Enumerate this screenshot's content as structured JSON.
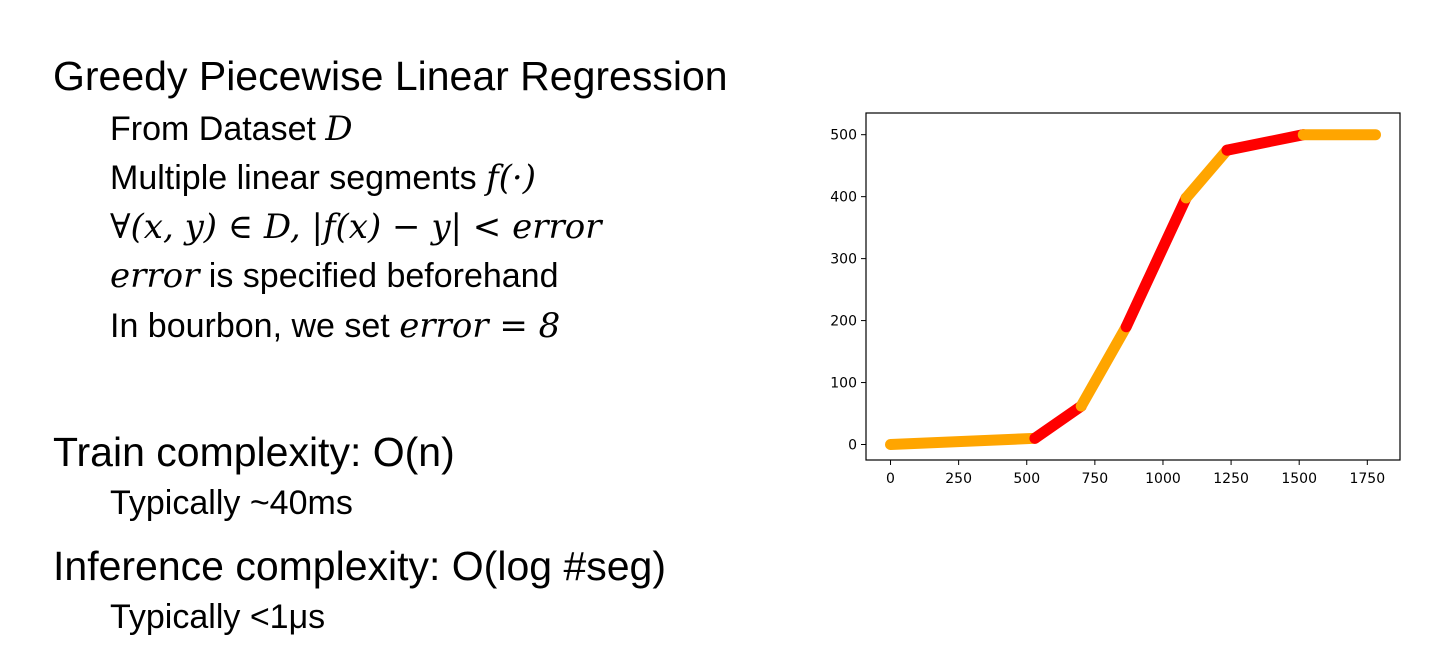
{
  "slide": {
    "title": "Greedy Piecewise Linear Regression",
    "bullets": [
      {
        "text": "From Dataset ",
        "math": "D"
      },
      {
        "text": "Multiple linear segments ",
        "math": "f(·)"
      },
      {
        "text": "",
        "math": "∀(x, y) ∈ D, |f(x) − y| < error"
      },
      {
        "math": "error",
        "text": " is specified beforehand"
      },
      {
        "text": "In bourbon, we set ",
        "math": "error = 8"
      }
    ],
    "train": {
      "heading": "Train complexity: O(n)",
      "detail": "Typically ~40ms"
    },
    "inference": {
      "heading": "Inference complexity: O(log #seg)",
      "detail": "Typically <1μs"
    }
  },
  "chart_data": {
    "type": "line",
    "title": "",
    "xlabel": "",
    "ylabel": "",
    "xlim": [
      -90,
      1870
    ],
    "ylim": [
      -25,
      535
    ],
    "xticks": [
      0,
      250,
      500,
      750,
      1000,
      1250,
      1500,
      1750
    ],
    "yticks": [
      0,
      100,
      200,
      300,
      400,
      500
    ],
    "grid": false,
    "segments": [
      {
        "x": [
          0,
          530
        ],
        "y": [
          0,
          10
        ],
        "color": "#ffa500"
      },
      {
        "x": [
          530,
          700
        ],
        "y": [
          10,
          62
        ],
        "color": "#ff0000"
      },
      {
        "x": [
          700,
          865
        ],
        "y": [
          62,
          190
        ],
        "color": "#ffa500"
      },
      {
        "x": [
          865,
          1085
        ],
        "y": [
          190,
          398
        ],
        "color": "#ff0000"
      },
      {
        "x": [
          1085,
          1235
        ],
        "y": [
          398,
          475
        ],
        "color": "#ffa500"
      },
      {
        "x": [
          1235,
          1515
        ],
        "y": [
          475,
          500
        ],
        "color": "#ff0000"
      },
      {
        "x": [
          1515,
          1780
        ],
        "y": [
          500,
          500
        ],
        "color": "#ffa500"
      }
    ]
  }
}
